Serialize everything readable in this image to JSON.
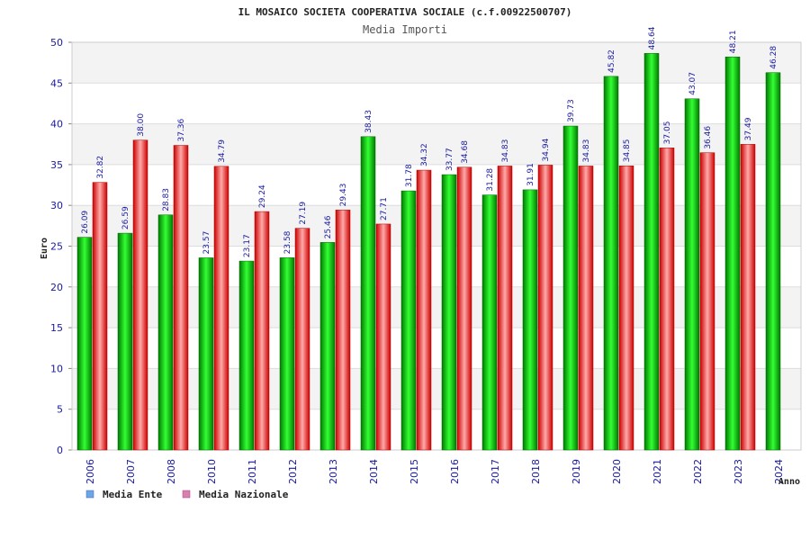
{
  "chart_data": {
    "type": "bar",
    "title": "IL MOSAICO SOCIETA COOPERATIVA SOCIALE (c.f.00922500707)",
    "subtitle": "Media Importi",
    "ylabel": "Euro",
    "xlabel": "Anno",
    "ylim": [
      0,
      50
    ],
    "yticks": [
      0,
      5,
      10,
      15,
      20,
      25,
      30,
      35,
      40,
      45,
      50
    ],
    "grid": true,
    "legend_position": "bottom-left",
    "categories": [
      "2006",
      "2007",
      "2008",
      "2010",
      "2011",
      "2012",
      "2013",
      "2014",
      "2015",
      "2016",
      "2017",
      "2018",
      "2019",
      "2020",
      "2021",
      "2022",
      "2023",
      "2024"
    ],
    "series": [
      {
        "name": "Media Ente",
        "color": "#00cc00",
        "legend_color": "#6aa6e8",
        "values": [
          26.09,
          26.59,
          28.83,
          23.57,
          23.17,
          23.58,
          25.46,
          38.43,
          31.78,
          33.77,
          31.28,
          31.91,
          39.73,
          45.82,
          48.64,
          43.07,
          48.21,
          46.28
        ],
        "labels": [
          "26.09",
          "26.59",
          "28.83",
          "23.57",
          "23.17",
          "23.58",
          "25.46",
          "38.43",
          "31.78",
          "33.77",
          "31.28",
          "31.91",
          "39.73",
          "45.82",
          "48.64",
          "43.07",
          "48.21",
          "46.28"
        ]
      },
      {
        "name": "Media Nazionale",
        "color": "#ee2222",
        "legend_color": "#d97fb0",
        "values": [
          32.82,
          38.0,
          37.36,
          34.79,
          29.24,
          27.19,
          29.43,
          27.71,
          34.32,
          34.68,
          34.83,
          34.94,
          34.83,
          34.85,
          37.05,
          36.46,
          37.49,
          null
        ],
        "labels": [
          "32.82",
          "38.00",
          "37.36",
          "34.79",
          "29.24",
          "27.19",
          "29.43",
          "27.71",
          "34.32",
          "34.68",
          "34.83",
          "34.94",
          "34.83",
          "34.85",
          "37.05",
          "36.46",
          "37.49",
          null
        ]
      }
    ]
  }
}
